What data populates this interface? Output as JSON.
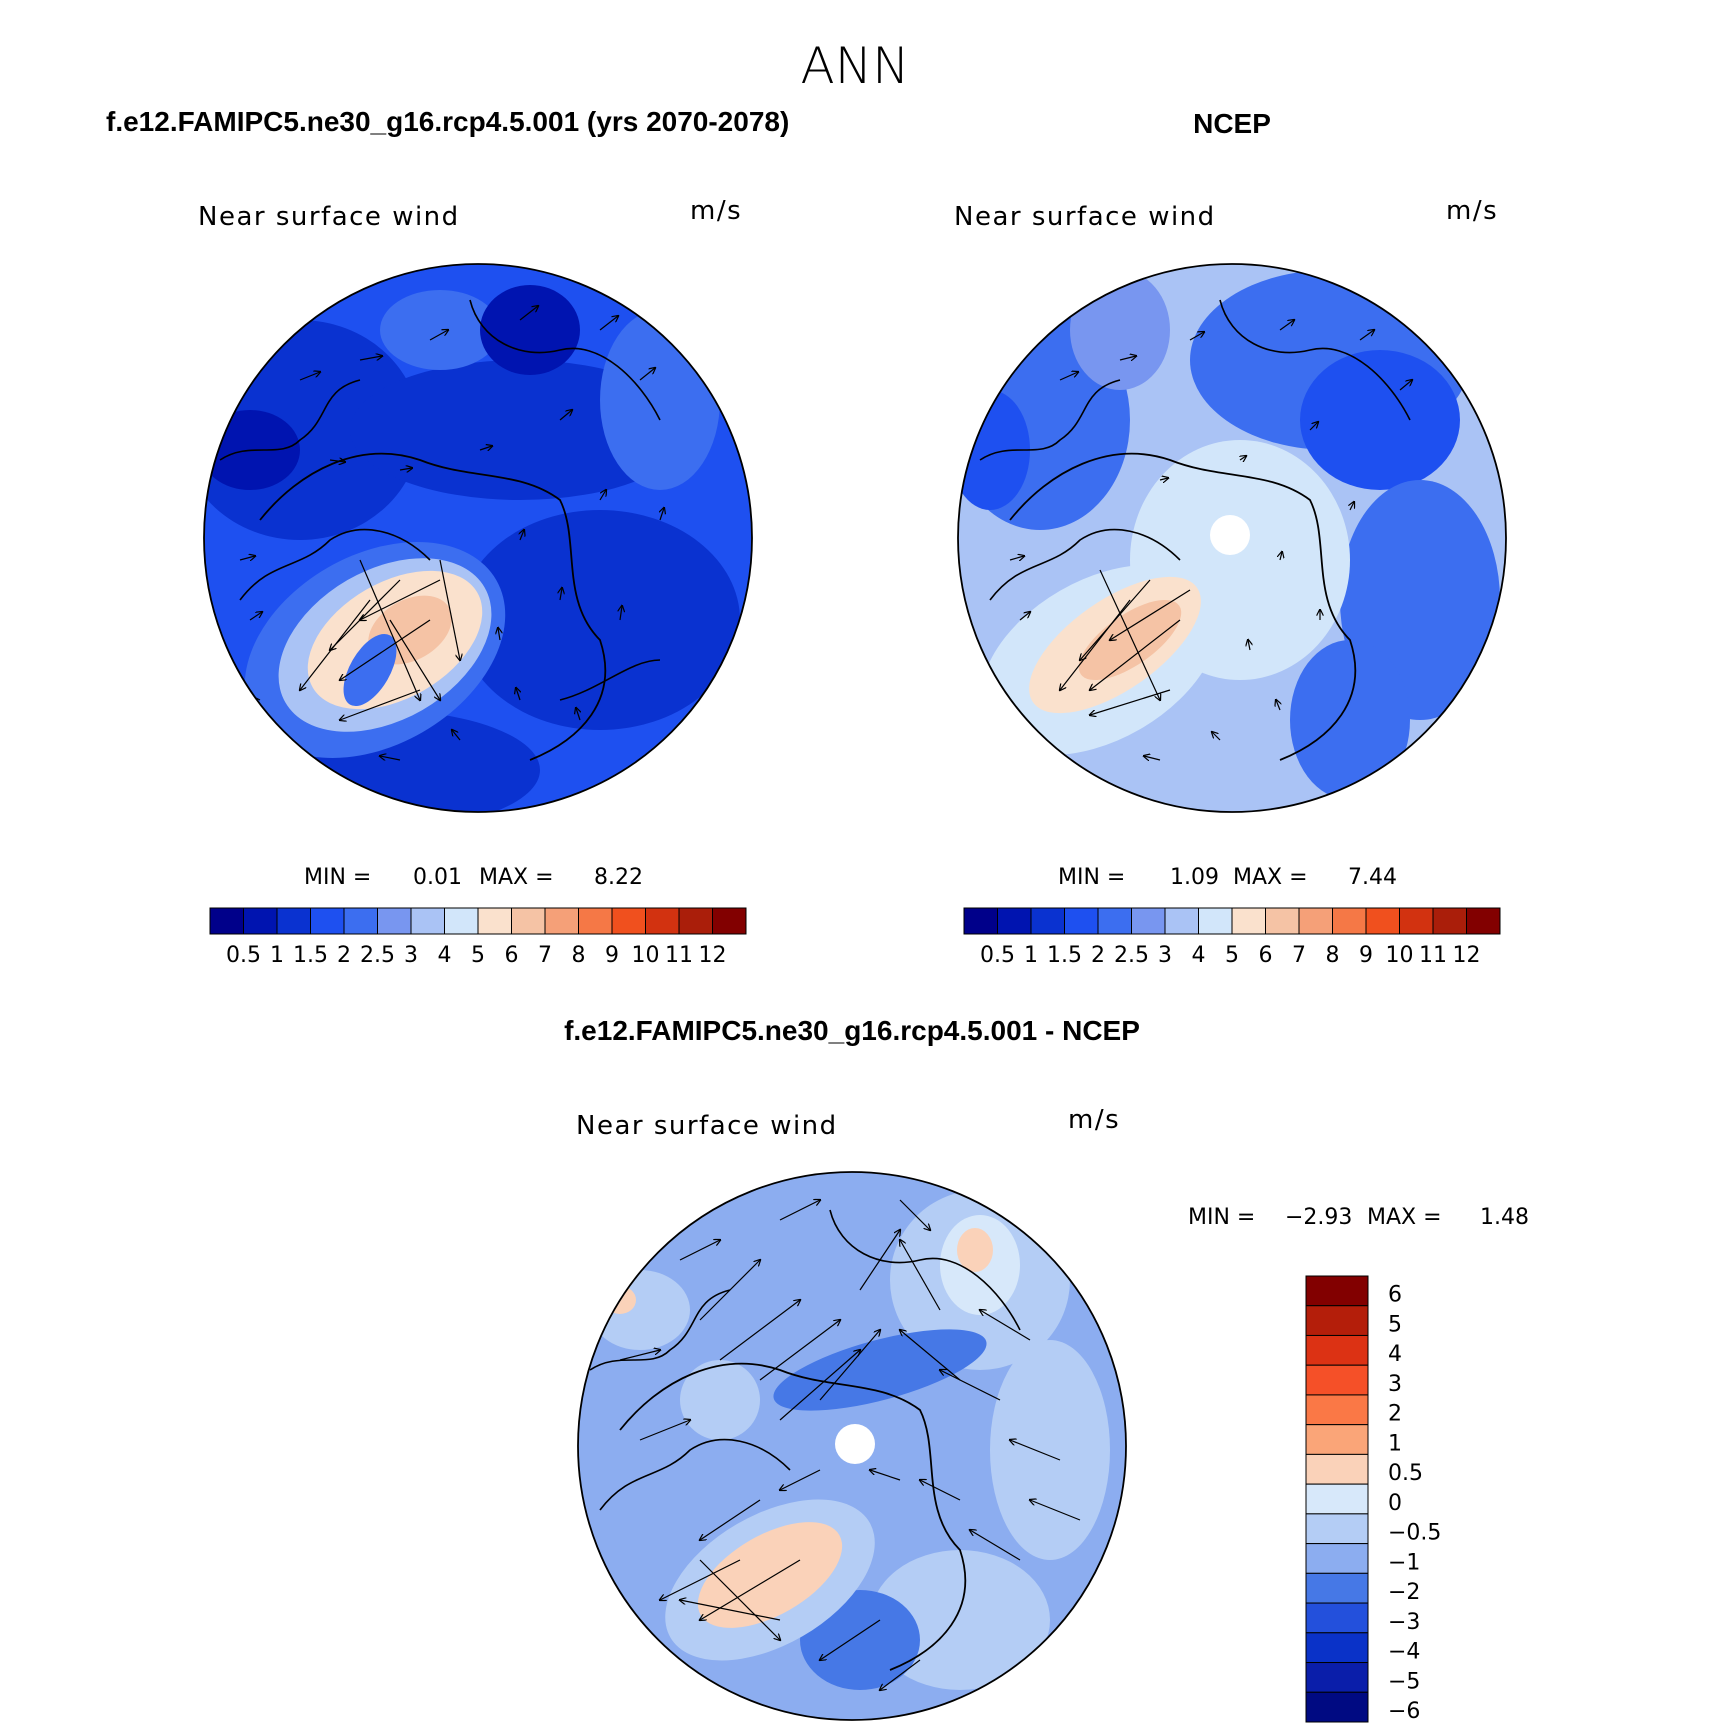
{
  "title": "ANN",
  "panels": [
    {
      "heading": "f.e12.FAMIPC5.ne30_g16.rcp4.5.001 (yrs 2070-2078)",
      "variable": "Near surface wind",
      "units": "m/s",
      "min_label": "MIN =",
      "min_value": "0.01",
      "max_label": "MAX =",
      "max_value": "8.22",
      "colorbar_labels": [
        "0.5",
        "1",
        "1.5",
        "2",
        "2.5",
        "3",
        "4",
        "5",
        "6",
        "7",
        "8",
        "9",
        "10",
        "11",
        "12"
      ]
    },
    {
      "heading": "NCEP",
      "variable": "Near surface wind",
      "units": "m/s",
      "min_label": "MIN =",
      "min_value": "1.09",
      "max_label": "MAX =",
      "max_value": "7.44",
      "colorbar_labels": [
        "0.5",
        "1",
        "1.5",
        "2",
        "2.5",
        "3",
        "4",
        "5",
        "6",
        "7",
        "8",
        "9",
        "10",
        "11",
        "12"
      ]
    },
    {
      "heading": "f.e12.FAMIPC5.ne30_g16.rcp4.5.001 - NCEP",
      "variable": "Near surface wind",
      "units": "m/s",
      "min_label": "MIN =",
      "min_value": "−2.93",
      "max_label": "MAX =",
      "max_value": "1.48",
      "colorbar_labels": [
        "6",
        "5",
        "4",
        "3",
        "2",
        "1",
        "0.5",
        "0",
        "−0.5",
        "−1",
        "−2",
        "−3",
        "−4",
        "−5",
        "−6"
      ]
    }
  ],
  "colors": {
    "abs_scale": [
      "#00008a",
      "#0014b0",
      "#0a32d0",
      "#1e50f0",
      "#3c6ef0",
      "#7896f0",
      "#aac3f5",
      "#d2e6fa",
      "#fae1cd",
      "#f5c3a5",
      "#f5a078",
      "#f57846",
      "#f0501e",
      "#d23210",
      "#aa1e0a",
      "#820000"
    ],
    "diff_scale": [
      "#820000",
      "#b41e0a",
      "#dc3214",
      "#f55028",
      "#fa7846",
      "#faa578",
      "#fad2b9",
      "#d7e8fa",
      "#b4cdf5",
      "#8cadf0",
      "#4678e6",
      "#2350dc",
      "#0a32c8",
      "#0a1eaa",
      "#000a82"
    ]
  }
}
